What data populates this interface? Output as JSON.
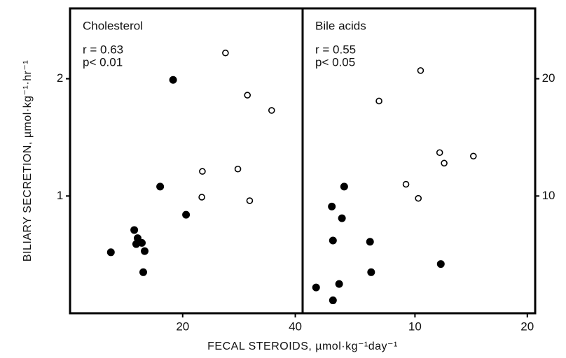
{
  "chart_data": [
    {
      "type": "scatter",
      "title": "Cholesterol",
      "annotations": [
        "r = 0.63",
        "p< 0.01"
      ],
      "xlim": [
        0,
        41.3
      ],
      "ylim": [
        0,
        2.6
      ],
      "xticks": [
        20,
        40
      ],
      "yticks": [
        1,
        2
      ],
      "y_axis_side": "left",
      "series": [
        {
          "marker": "open",
          "color": "#000000",
          "x": [
            27.6,
            31.5,
            35.8,
            23.5,
            29.8,
            23.4,
            31.9
          ],
          "values": [
            2.22,
            1.86,
            1.73,
            1.21,
            1.23,
            0.99,
            0.96
          ]
        },
        {
          "marker": "filled",
          "color": "#000000",
          "x": [
            18.3,
            16,
            20.6,
            11.4,
            12,
            11.75,
            12.75,
            13.25,
            7.25,
            13
          ],
          "values": [
            1.99,
            1.08,
            0.84,
            0.71,
            0.64,
            0.59,
            0.6,
            0.53,
            0.52,
            0.35
          ]
        }
      ]
    },
    {
      "type": "scatter",
      "title": "Bile acids",
      "annotations": [
        "r = 0.55",
        "p< 0.05"
      ],
      "xlim": [
        0,
        20.7
      ],
      "ylim": [
        0,
        26
      ],
      "xticks": [
        10,
        20
      ],
      "yticks": [
        10,
        20
      ],
      "y_axis_side": "right",
      "series": [
        {
          "marker": "open",
          "color": "#000000",
          "x": [
            10.5,
            6.8,
            12.2,
            12.6,
            15.2,
            9.2,
            10.3
          ],
          "values": [
            20.7,
            18.1,
            13.7,
            12.8,
            13.4,
            11.0,
            9.8
          ]
        },
        {
          "marker": "filled",
          "color": "#000000",
          "x": [
            3.7,
            2.6,
            3.5,
            2.7,
            6,
            6.1,
            12.3,
            1.2,
            3.25,
            2.7
          ],
          "values": [
            10.8,
            9.1,
            8.1,
            6.2,
            6.1,
            3.5,
            4.2,
            2.2,
            2.5,
            1.1
          ]
        }
      ]
    }
  ],
  "xlabel": "FECAL STEROIDS, µmol·kg⁻¹day⁻¹",
  "ylabel": "BILIARY SECRETION, µmol·kg⁻¹·hr⁻¹"
}
